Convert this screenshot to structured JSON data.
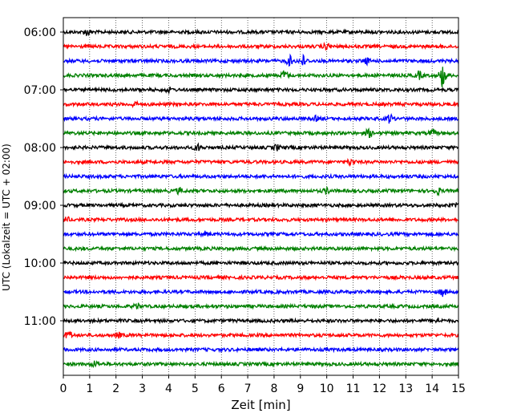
{
  "chart_data": {
    "type": "line",
    "title": "",
    "xlabel": "Zeit  [min]",
    "ylabel": "UTC (Lokalzeit = UTC + 02:00)",
    "xlim": [
      0,
      15
    ],
    "x_ticks": [
      0,
      1,
      2,
      3,
      4,
      5,
      6,
      7,
      8,
      9,
      10,
      11,
      12,
      13,
      14,
      15
    ],
    "x_tick_labels": [
      "0",
      "1",
      "2",
      "3",
      "4",
      "5",
      "6",
      "7",
      "8",
      "9",
      "10",
      "11",
      "12",
      "13",
      "14",
      "15"
    ],
    "y_tick_labels": [
      "06:00",
      "07:00",
      "08:00",
      "09:00",
      "10:00",
      "11:00"
    ],
    "grid": "vertical dotted lines at each minute",
    "trace_interval_minutes": 15,
    "trace_colors": [
      "#000000",
      "#ff0000",
      "#0000ff",
      "#008000"
    ],
    "series": [
      {
        "start": "06:00",
        "color": "#000000",
        "events": [
          {
            "minute": 0.9,
            "amp": 0.6
          }
        ]
      },
      {
        "start": "06:15",
        "color": "#ff0000",
        "events": [
          {
            "minute": 10.0,
            "amp": 0.6
          }
        ]
      },
      {
        "start": "06:30",
        "color": "#0000ff",
        "events": [
          {
            "minute": 8.6,
            "amp": 0.9
          },
          {
            "minute": 9.1,
            "amp": 1.0
          },
          {
            "minute": 11.5,
            "amp": 0.5
          }
        ]
      },
      {
        "start": "06:45",
        "color": "#008000",
        "events": [
          {
            "minute": 8.4,
            "amp": 0.8
          },
          {
            "minute": 13.5,
            "amp": 0.7
          },
          {
            "minute": 14.4,
            "amp": 2.2
          }
        ]
      },
      {
        "start": "07:00",
        "color": "#000000",
        "events": [
          {
            "minute": 4.0,
            "amp": 0.4
          }
        ]
      },
      {
        "start": "07:15",
        "color": "#ff0000",
        "events": [
          {
            "minute": 2.7,
            "amp": 0.4
          }
        ]
      },
      {
        "start": "07:30",
        "color": "#0000ff",
        "events": [
          {
            "minute": 9.6,
            "amp": 0.4
          },
          {
            "minute": 12.4,
            "amp": 0.8
          }
        ]
      },
      {
        "start": "07:45",
        "color": "#008000",
        "events": [
          {
            "minute": 11.6,
            "amp": 0.7
          },
          {
            "minute": 14.0,
            "amp": 0.5
          }
        ]
      },
      {
        "start": "08:00",
        "color": "#000000",
        "events": [
          {
            "minute": 5.1,
            "amp": 0.6
          },
          {
            "minute": 8.1,
            "amp": 0.5
          }
        ]
      },
      {
        "start": "08:15",
        "color": "#ff0000",
        "events": [
          {
            "minute": 10.9,
            "amp": 0.5
          }
        ]
      },
      {
        "start": "08:30",
        "color": "#0000ff",
        "events": []
      },
      {
        "start": "08:45",
        "color": "#008000",
        "events": [
          {
            "minute": 4.4,
            "amp": 0.5
          },
          {
            "minute": 10.0,
            "amp": 0.5
          },
          {
            "minute": 14.2,
            "amp": 0.6
          }
        ]
      },
      {
        "start": "09:00",
        "color": "#000000",
        "events": [
          {
            "minute": 15.0,
            "amp": 0.5
          }
        ]
      },
      {
        "start": "09:15",
        "color": "#ff0000",
        "events": [
          {
            "minute": 0.1,
            "amp": 0.5
          }
        ]
      },
      {
        "start": "09:30",
        "color": "#0000ff",
        "events": [
          {
            "minute": 5.4,
            "amp": 0.4
          }
        ]
      },
      {
        "start": "09:45",
        "color": "#008000",
        "events": []
      },
      {
        "start": "10:00",
        "color": "#000000",
        "events": []
      },
      {
        "start": "10:15",
        "color": "#ff0000",
        "events": []
      },
      {
        "start": "10:30",
        "color": "#0000ff",
        "events": [
          {
            "minute": 14.4,
            "amp": 0.7
          }
        ]
      },
      {
        "start": "10:45",
        "color": "#008000",
        "events": [
          {
            "minute": 2.8,
            "amp": 0.5
          }
        ]
      },
      {
        "start": "11:00",
        "color": "#000000",
        "events": [
          {
            "minute": 14.2,
            "amp": 0.4
          }
        ]
      },
      {
        "start": "11:15",
        "color": "#ff0000",
        "events": [
          {
            "minute": 0.2,
            "amp": 0.8
          },
          {
            "minute": 2.1,
            "amp": 0.4
          }
        ]
      },
      {
        "start": "11:30",
        "color": "#0000ff",
        "events": []
      },
      {
        "start": "11:45",
        "color": "#008000",
        "events": [
          {
            "minute": 1.2,
            "amp": 0.5
          }
        ]
      }
    ]
  }
}
